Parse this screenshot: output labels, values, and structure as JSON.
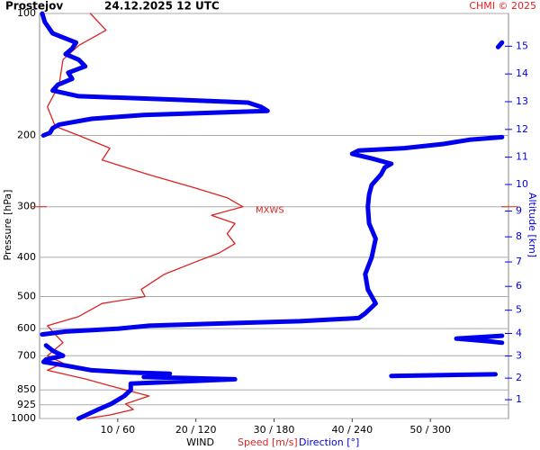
{
  "chart_data": {
    "type": "wind-profile",
    "title": "Prostejov",
    "subtitle": "24.12.2025 12 UTC",
    "credit": "CHMI © 2025",
    "y_label": "Pressure [hPa]",
    "y2_label": "Altitude [km]",
    "x_label": "WIND",
    "log_y": true,
    "ylim": [
      100,
      1000
    ],
    "yticks": [
      100,
      200,
      300,
      400,
      500,
      600,
      700,
      850,
      925,
      1000
    ],
    "xlim": [
      0,
      60
    ],
    "x2lim": [
      0,
      360
    ],
    "xticks": [
      {
        "value": 10,
        "label": "10 / 60"
      },
      {
        "value": 20,
        "label": "20 / 120"
      },
      {
        "value": 30,
        "label": "30 / 180"
      },
      {
        "value": 40,
        "label": "40 / 240"
      },
      {
        "value": 50,
        "label": "50 / 300"
      }
    ],
    "y2ticks": [
      1,
      2,
      3,
      4,
      5,
      6,
      7,
      8,
      9,
      10,
      11,
      12,
      13,
      14,
      15
    ],
    "y2_color": "#0000ee",
    "annotation": {
      "text": "MXWS",
      "pressure": 300,
      "color": "#dd2222"
    },
    "series": [
      {
        "name": "Speed [m/s]",
        "color": "#dd2222",
        "pressure": [
          100,
          110,
          120,
          130,
          150,
          170,
          190,
          200,
          215,
          230,
          250,
          270,
          285,
          300,
          315,
          330,
          350,
          370,
          390,
          410,
          440,
          480,
          500,
          520,
          560,
          590,
          620,
          650,
          700,
          730,
          760,
          800,
          830,
          860,
          880,
          920,
          950,
          980,
          1000
        ],
        "values": [
          6.5,
          8.5,
          5,
          3,
          2.5,
          1,
          2,
          5,
          9,
          8,
          14,
          20,
          24,
          26,
          22,
          25,
          24,
          25,
          23,
          20,
          16,
          13,
          13.5,
          8,
          5,
          1,
          2,
          3,
          1,
          3,
          1,
          6,
          9,
          12,
          14,
          11,
          12,
          9,
          6
        ]
      },
      {
        "name": "Direction [°]",
        "color": "#0000ee",
        "axis": "x2",
        "pressure": [
          100,
          105,
          112,
          118,
          122,
          126,
          130,
          135,
          140,
          145,
          150,
          155,
          160,
          163,
          166,
          170,
          174,
          178,
          182,
          188,
          192,
          197,
          200,
          201,
          118,
          121,
          122,
          202,
          205,
          210,
          215,
          218,
          222,
          228,
          235,
          240,
          250,
          265,
          280,
          300,
          330,
          360,
          400,
          440,
          480,
          520,
          550,
          565,
          575,
          585,
          590,
          600,
          610,
          620,
          621,
          625,
          635,
          645,
          650,
          655,
          660,
          680,
          700,
          715,
          725,
          740,
          760,
          770,
          775,
          776,
          778,
          785,
          787,
          790,
          800,
          820,
          850,
          880,
          920,
          950,
          1000
        ],
        "values": [
          2,
          4,
          10,
          28,
          25,
          20,
          30,
          35,
          22,
          25,
          14,
          10,
          30,
          100,
          160,
          170,
          175,
          80,
          40,
          15,
          10,
          8,
          3,
          null,
          355,
          352,
          null,
          355,
          330,
          310,
          280,
          245,
          240,
          255,
          270,
          265,
          262,
          255,
          253,
          252,
          253,
          258,
          255,
          250,
          252,
          258,
          250,
          245,
          200,
          120,
          84,
          60,
          20,
          2,
          null,
          355,
          320,
          345,
          355,
          null,
          5,
          10,
          18,
          5,
          3,
          20,
          40,
          70,
          100,
          null,
          350,
          270,
          null,
          80,
          150,
          70,
          70,
          65,
          55,
          45,
          30
        ]
      }
    ]
  }
}
